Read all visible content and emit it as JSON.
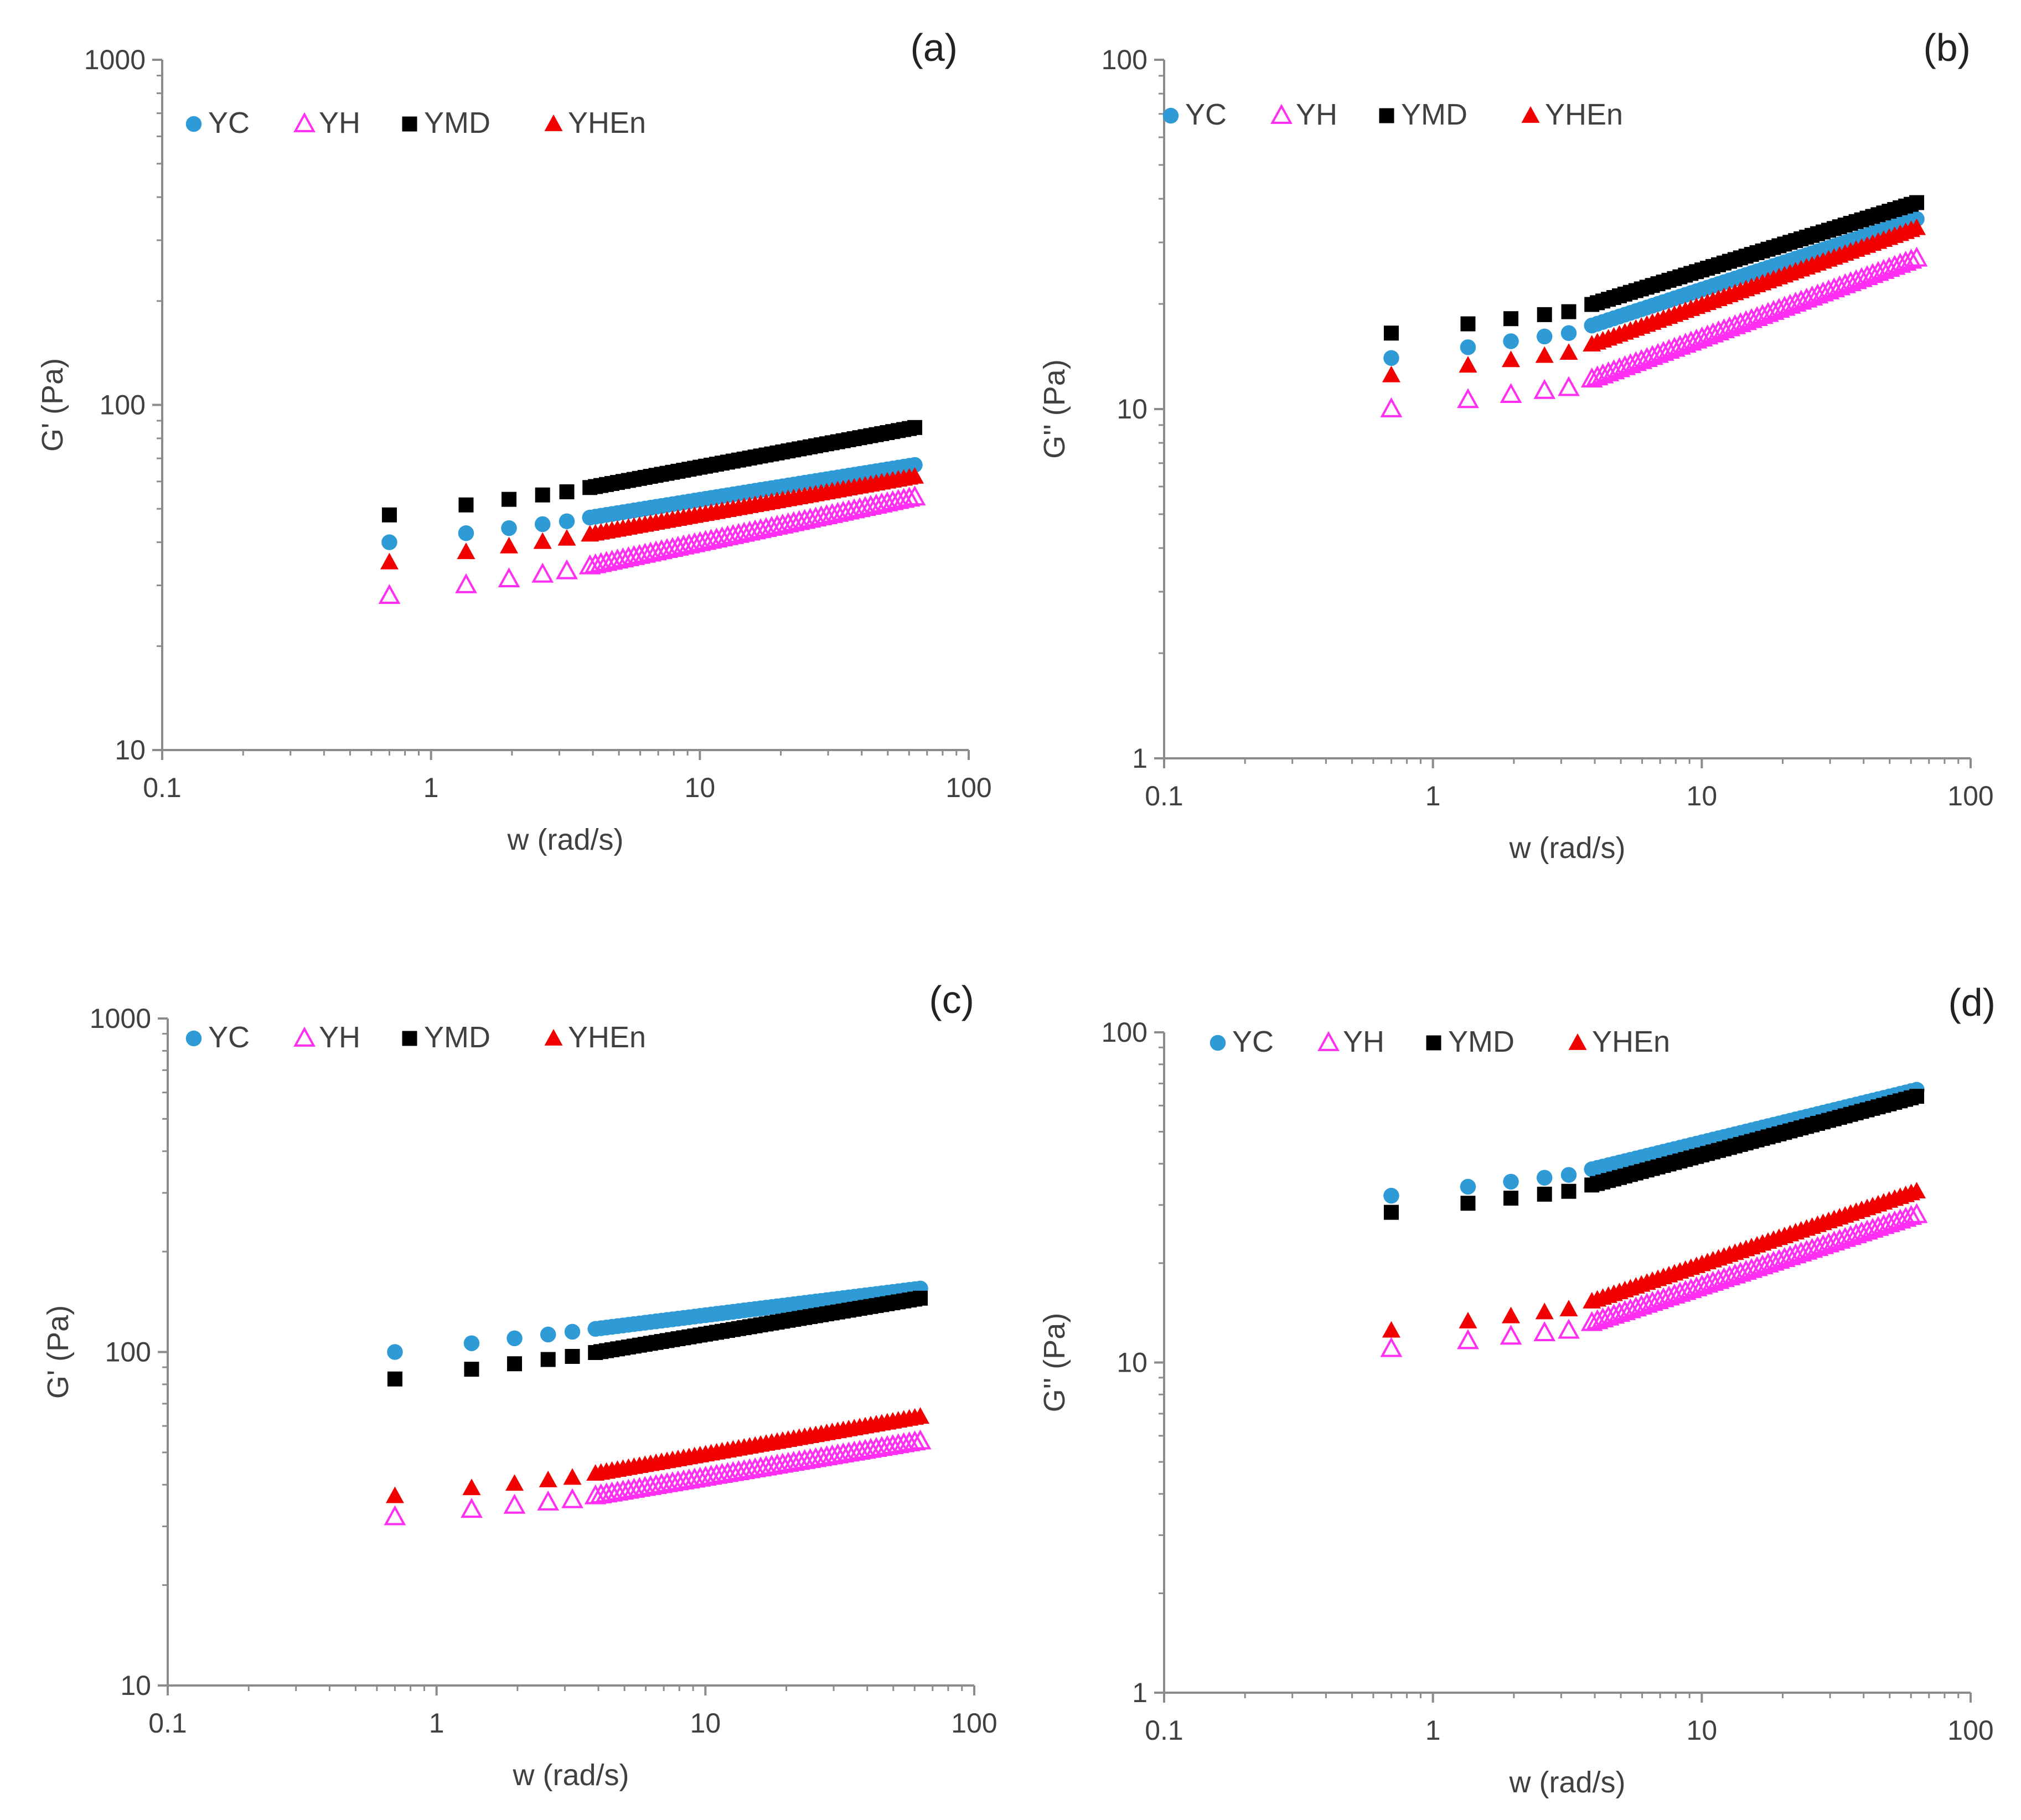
{
  "figure": {
    "panels": [
      "(a)",
      "(b)",
      "(c)",
      "(d)"
    ]
  },
  "colors": {
    "YC": "#2e9bd6",
    "YH": "#ff2ef2",
    "YMD": "#000000",
    "YHEn": "#f20000",
    "axis": "#8c8c8c"
  },
  "chart_data": [
    {
      "type": "scatter",
      "panel_label": "(a)",
      "xlabel": "w (rad/s)",
      "ylabel": "G' (Pa)",
      "xscale": "log",
      "yscale": "log",
      "xlim": [
        0.1,
        100
      ],
      "ylim": [
        10,
        1000
      ],
      "xticks": [
        "0.1",
        "1",
        "10",
        "100"
      ],
      "yticks": [
        "10",
        "100",
        "1000"
      ],
      "grid": false,
      "legend_position": "top-left",
      "x_range": [
        0.7,
        63
      ],
      "series": [
        {
          "name": "YC",
          "marker": "circle-filled",
          "color": "#2e9bd6",
          "start": 40,
          "end": 67,
          "knee": 46
        },
        {
          "name": "YH",
          "marker": "triangle-open",
          "color": "#ff2ef2",
          "start": 28,
          "end": 54,
          "knee": 33
        },
        {
          "name": "YMD",
          "marker": "square-filled",
          "color": "#000000",
          "start": 48,
          "end": 86,
          "knee": 56
        },
        {
          "name": "YHEn",
          "marker": "triangle-filled",
          "color": "#f20000",
          "start": 35,
          "end": 62,
          "knee": 41
        }
      ]
    },
    {
      "type": "scatter",
      "panel_label": "(b)",
      "xlabel": "w (rad/s)",
      "ylabel": "G'' (Pa)",
      "xscale": "log",
      "yscale": "log",
      "xlim": [
        0.1,
        100
      ],
      "ylim": [
        1,
        100
      ],
      "xticks": [
        "0.1",
        "1",
        "10",
        "100"
      ],
      "yticks": [
        "1",
        "10",
        "100"
      ],
      "grid": false,
      "legend_position": "top-left",
      "x_range": [
        0.7,
        63
      ],
      "series": [
        {
          "name": "YC",
          "marker": "circle-filled",
          "color": "#2e9bd6",
          "start": 14,
          "end": 35,
          "knee": 16.5
        },
        {
          "name": "YH",
          "marker": "triangle-open",
          "color": "#ff2ef2",
          "start": 10,
          "end": 27,
          "knee": 11.5
        },
        {
          "name": "YMD",
          "marker": "square-filled",
          "color": "#000000",
          "start": 16.5,
          "end": 39,
          "knee": 19
        },
        {
          "name": "YHEn",
          "marker": "triangle-filled",
          "color": "#f20000",
          "start": 12.5,
          "end": 33,
          "knee": 14.5
        }
      ]
    },
    {
      "type": "scatter",
      "panel_label": "(c)",
      "xlabel": "w (rad/s)",
      "ylabel": "G' (Pa)",
      "xscale": "log",
      "yscale": "log",
      "xlim": [
        0.1,
        100
      ],
      "ylim": [
        10,
        1000
      ],
      "xticks": [
        "0.1",
        "1",
        "10",
        "100"
      ],
      "yticks": [
        "10",
        "100",
        "1000"
      ],
      "grid": false,
      "legend_position": "top-left",
      "x_range": [
        0.7,
        63
      ],
      "series": [
        {
          "name": "YC",
          "marker": "circle-filled",
          "color": "#2e9bd6",
          "start": 100,
          "end": 155,
          "knee": 115
        },
        {
          "name": "YH",
          "marker": "triangle-open",
          "color": "#ff2ef2",
          "start": 32,
          "end": 54,
          "knee": 36
        },
        {
          "name": "YMD",
          "marker": "square-filled",
          "color": "#000000",
          "start": 83,
          "end": 145,
          "knee": 97
        },
        {
          "name": "YHEn",
          "marker": "triangle-filled",
          "color": "#f20000",
          "start": 37,
          "end": 64,
          "knee": 42
        }
      ]
    },
    {
      "type": "scatter",
      "panel_label": "(d)",
      "xlabel": "w (rad/s)",
      "ylabel": "G'' (Pa)",
      "xscale": "log",
      "yscale": "log",
      "xlim": [
        0.1,
        100
      ],
      "ylim": [
        1,
        100
      ],
      "xticks": [
        "0.1",
        "1",
        "10",
        "100"
      ],
      "yticks": [
        "1",
        "10",
        "100"
      ],
      "grid": false,
      "legend_position": "top-left",
      "x_range": [
        0.7,
        63
      ],
      "series": [
        {
          "name": "YC",
          "marker": "circle-filled",
          "color": "#2e9bd6",
          "start": 32,
          "end": 67,
          "knee": 37
        },
        {
          "name": "YH",
          "marker": "triangle-open",
          "color": "#ff2ef2",
          "start": 11,
          "end": 28,
          "knee": 12.5
        },
        {
          "name": "YMD",
          "marker": "square-filled",
          "color": "#000000",
          "start": 28.5,
          "end": 64,
          "knee": 33
        },
        {
          "name": "YHEn",
          "marker": "triangle-filled",
          "color": "#f20000",
          "start": 12.5,
          "end": 33,
          "knee": 14.5
        }
      ]
    }
  ]
}
